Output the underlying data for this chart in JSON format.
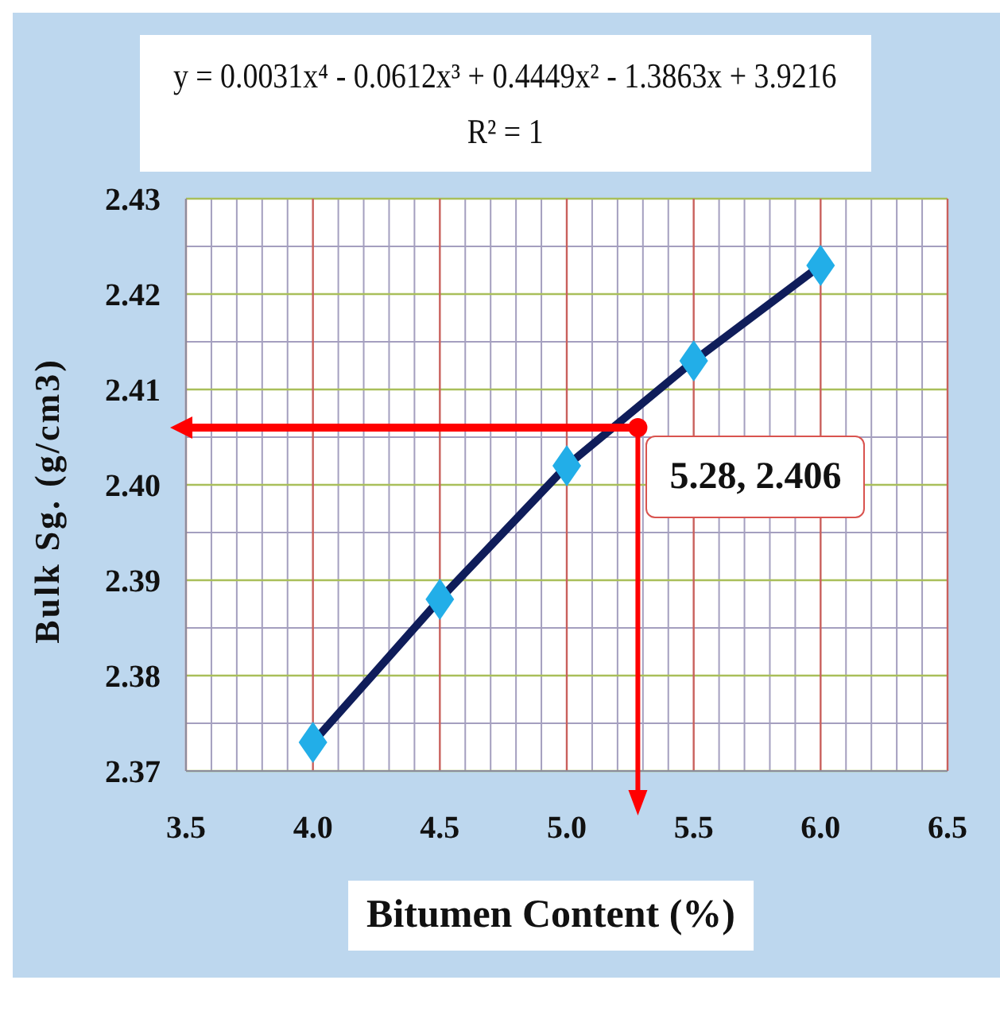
{
  "chart_data": {
    "type": "line",
    "title": "y = 0.0031x⁴ - 0.0612x³ + 0.4449x² - 1.3863x + 3.9216",
    "subtitle": "R² = 1",
    "xlabel": "Bitumen Content (%)",
    "ylabel": "Bulk Sg. (g/cm3)",
    "x": [
      4,
      4.5,
      5,
      5.5,
      6
    ],
    "series": [
      {
        "color": "#0f1d5a",
        "colors": [
          "#22aee8",
          "#22aee8",
          "#22aee8",
          "#22aee8",
          "#22aee8"
        ],
        "values": [
          2.373,
          2.388,
          2.402,
          2.413,
          2.423
        ]
      }
    ],
    "marker": "diamond",
    "grid": true,
    "xlim": [
      3.5,
      6.5
    ],
    "xticks": [
      3.5,
      {
        "value": 4,
        "label": "4.0"
      },
      4.5,
      {
        "value": 5,
        "label": "5.0"
      },
      5.5,
      {
        "value": 6,
        "label": "6.0"
      },
      6.5
    ],
    "ylim": [
      2.37,
      2.43
    ],
    "yticks": [
      2.37,
      2.38,
      2.39,
      {
        "value": 2.4,
        "label": "2.40"
      },
      2.41,
      2.42,
      2.43
    ],
    "annotations": [
      {
        "text": "5.28, 2.406",
        "x": 5.28,
        "y": 2.406
      }
    ]
  }
}
